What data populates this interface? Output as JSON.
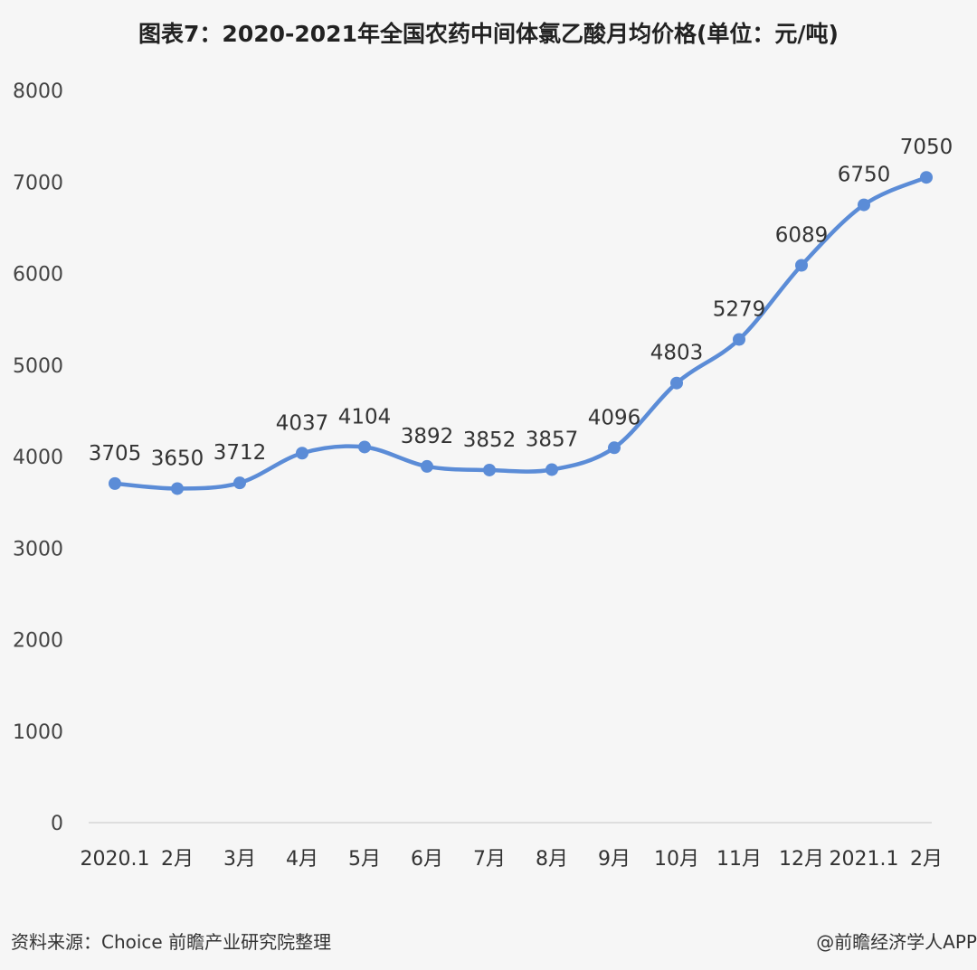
{
  "chart_data": {
    "type": "line",
    "title": "图表7：2020-2021年全国农药中间体氯乙酸月均价格(单位：元/吨)",
    "categories": [
      "2020.1",
      "2月",
      "3月",
      "4月",
      "5月",
      "6月",
      "7月",
      "8月",
      "9月",
      "10月",
      "11月",
      "12月",
      "2021.1",
      "2月"
    ],
    "values": [
      3705,
      3650,
      3712,
      4037,
      4104,
      3892,
      3852,
      3857,
      4096,
      4803,
      5279,
      6089,
      6750,
      7050
    ],
    "xlabel": "",
    "ylabel": "",
    "ylim": [
      0,
      8000
    ],
    "yticks": [
      0,
      1000,
      2000,
      3000,
      4000,
      5000,
      6000,
      7000,
      8000
    ],
    "grid": false,
    "smooth": true,
    "data_labels": true,
    "line_color": "#5b8cd7"
  },
  "footer": {
    "source": "资料来源：Choice 前瞻产业研究院整理",
    "credit": "@前瞻经济学人APP"
  }
}
